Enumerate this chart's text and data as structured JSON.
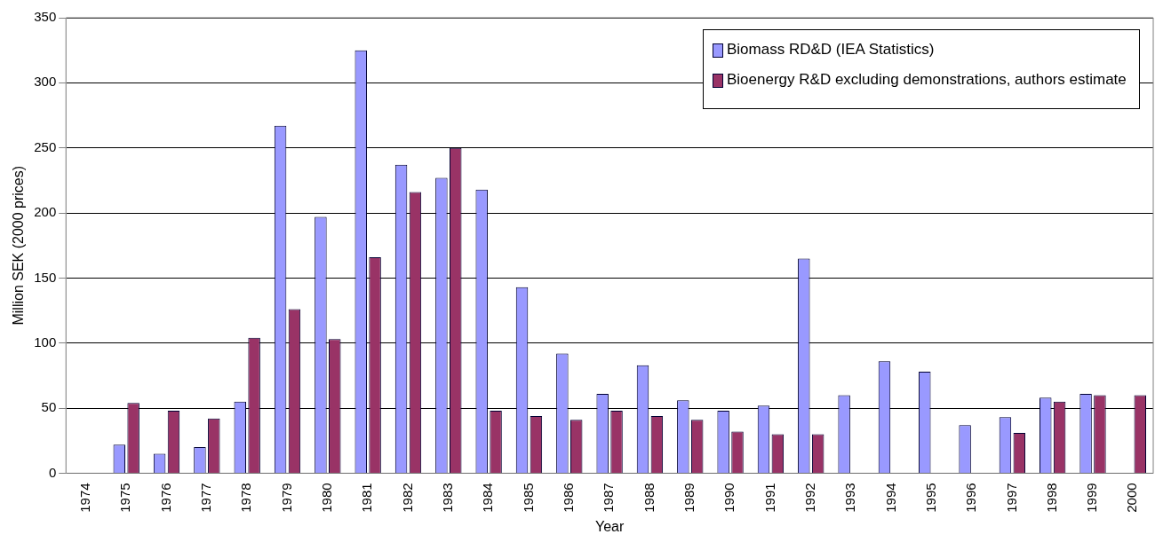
{
  "chart_data": {
    "type": "bar",
    "xlabel": "Year",
    "ylabel": "Million SEK (2000 prices)",
    "categories": [
      "1974",
      "1975",
      "1976",
      "1977",
      "1978",
      "1979",
      "1980",
      "1981",
      "1982",
      "1983",
      "1984",
      "1985",
      "1986",
      "1987",
      "1988",
      "1989",
      "1990",
      "1991",
      "1992",
      "1993",
      "1994",
      "1995",
      "1996",
      "1997",
      "1998",
      "1999",
      "2000"
    ],
    "series": [
      {
        "name": "Biomass RD&D (IEA Statistics)",
        "color": "#9999ff",
        "values": [
          null,
          22,
          15,
          20,
          55,
          267,
          197,
          325,
          237,
          227,
          218,
          143,
          92,
          61,
          83,
          56,
          48,
          52,
          165,
          60,
          86,
          78,
          37,
          43,
          58,
          61,
          null
        ]
      },
      {
        "name": "Bioenergy R&D excluding demonstrations, authors estimate",
        "color": "#993366",
        "values": [
          null,
          54,
          48,
          42,
          104,
          126,
          103,
          166,
          216,
          250,
          48,
          44,
          41,
          48,
          44,
          41,
          32,
          30,
          30,
          null,
          null,
          null,
          null,
          31,
          55,
          60,
          60
        ]
      }
    ],
    "ylim": [
      0,
      350
    ],
    "yticks": [
      0,
      50,
      100,
      150,
      200,
      250,
      300,
      350
    ],
    "grid": "y",
    "legend": "top right"
  }
}
